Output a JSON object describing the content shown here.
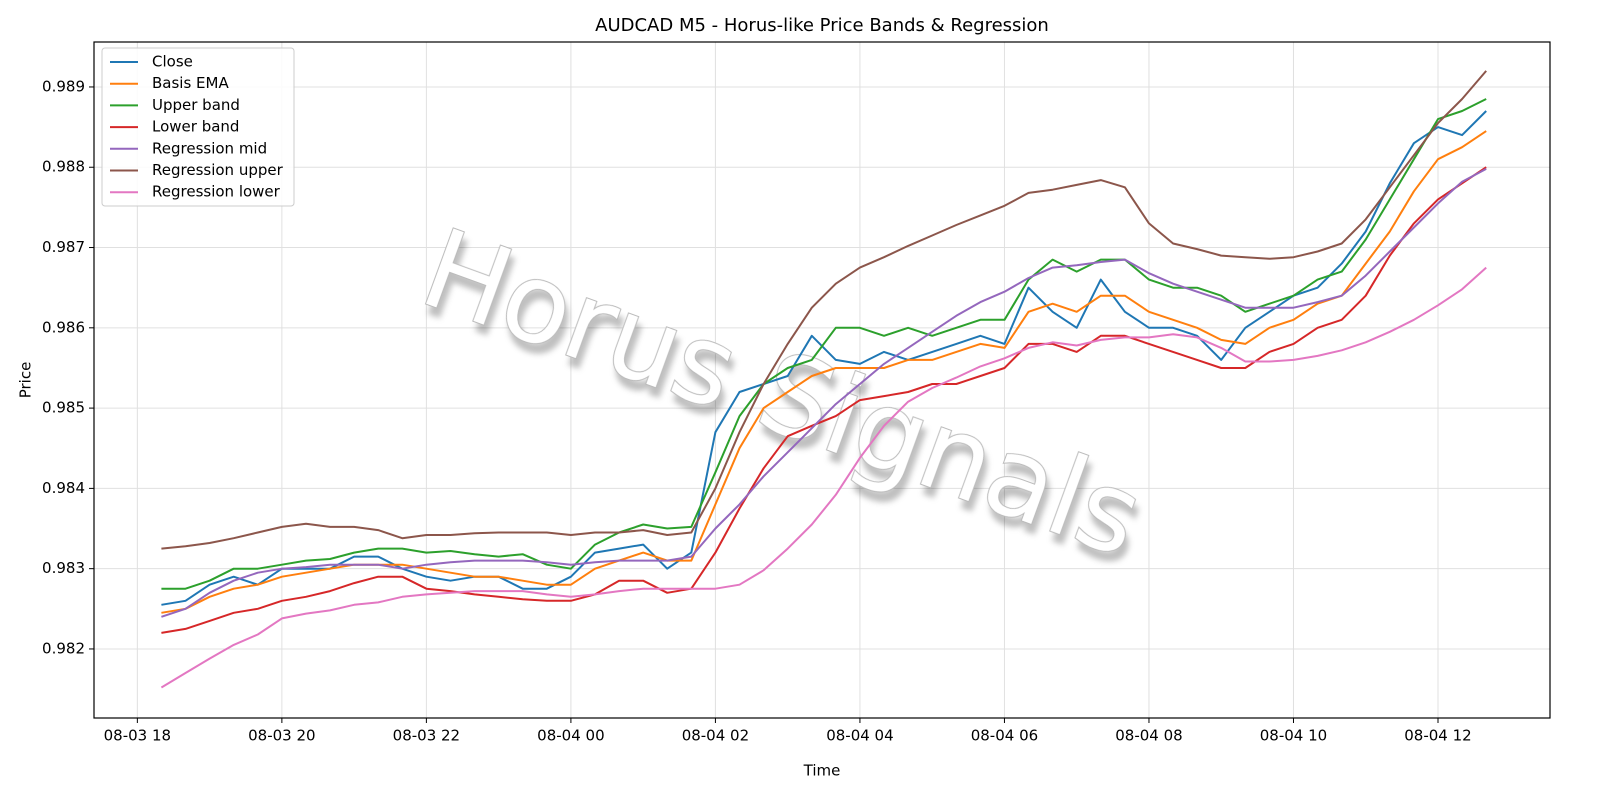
{
  "chart_data": {
    "type": "line",
    "title": "AUDCAD M5 - Horus-like Price Bands & Regression",
    "xlabel": "Time",
    "ylabel": "Price",
    "watermark": "Horus Signals",
    "legend": "upper left",
    "grid": true,
    "x": [
      "08-03 18:20",
      "08-03 18:40",
      "08-03 19:00",
      "08-03 19:20",
      "08-03 19:40",
      "08-03 20:00",
      "08-03 20:20",
      "08-03 20:40",
      "08-03 21:00",
      "08-03 21:20",
      "08-03 21:40",
      "08-03 22:00",
      "08-03 22:20",
      "08-03 22:40",
      "08-03 23:00",
      "08-03 23:20",
      "08-03 23:40",
      "08-04 00:00",
      "08-04 00:20",
      "08-04 00:40",
      "08-04 01:00",
      "08-04 01:20",
      "08-04 01:40",
      "08-04 02:00",
      "08-04 02:20",
      "08-04 02:40",
      "08-04 03:00",
      "08-04 03:20",
      "08-04 03:40",
      "08-04 04:00",
      "08-04 04:20",
      "08-04 04:40",
      "08-04 05:00",
      "08-04 05:20",
      "08-04 05:40",
      "08-04 06:00",
      "08-04 06:20",
      "08-04 06:40",
      "08-04 07:00",
      "08-04 07:20",
      "08-04 07:40",
      "08-04 08:00",
      "08-04 08:20",
      "08-04 08:40",
      "08-04 09:00",
      "08-04 09:20",
      "08-04 09:40",
      "08-04 10:00",
      "08-04 10:20",
      "08-04 10:40",
      "08-04 11:00",
      "08-04 11:20",
      "08-04 11:40",
      "08-04 12:00",
      "08-04 12:20",
      "08-04 12:40"
    ],
    "xlim": [
      "08-03 17:24",
      "08-04 13:33"
    ],
    "xticks": [
      {
        "value": "08-03 18:00",
        "label": "08-03 18"
      },
      {
        "value": "08-03 20:00",
        "label": "08-03 20"
      },
      {
        "value": "08-03 22:00",
        "label": "08-03 22"
      },
      {
        "value": "08-04 00:00",
        "label": "08-04 00"
      },
      {
        "value": "08-04 02:00",
        "label": "08-04 02"
      },
      {
        "value": "08-04 04:00",
        "label": "08-04 04"
      },
      {
        "value": "08-04 06:00",
        "label": "08-04 06"
      },
      {
        "value": "08-04 08:00",
        "label": "08-04 08"
      },
      {
        "value": "08-04 10:00",
        "label": "08-04 10"
      },
      {
        "value": "08-04 12:00",
        "label": "08-04 12"
      }
    ],
    "ylim": [
      0.98114,
      0.98956
    ],
    "yticks": [
      0.982,
      0.983,
      0.984,
      0.985,
      0.986,
      0.987,
      0.988,
      0.989
    ],
    "series": [
      {
        "name": "Close",
        "color": "#1f77b4",
        "values": [
          0.98255,
          0.9826,
          0.9828,
          0.9829,
          0.9828,
          0.983,
          0.983,
          0.983,
          0.98315,
          0.98315,
          0.983,
          0.9829,
          0.98285,
          0.9829,
          0.9829,
          0.98275,
          0.98275,
          0.9829,
          0.9832,
          0.98325,
          0.9833,
          0.983,
          0.9832,
          0.9847,
          0.9852,
          0.9853,
          0.9854,
          0.9859,
          0.9856,
          0.98555,
          0.9857,
          0.9856,
          0.9857,
          0.9858,
          0.9859,
          0.9858,
          0.9865,
          0.9862,
          0.986,
          0.9866,
          0.9862,
          0.986,
          0.986,
          0.9859,
          0.9856,
          0.986,
          0.9862,
          0.9864,
          0.9865,
          0.9868,
          0.9872,
          0.9878,
          0.9883,
          0.9885,
          0.9884,
          0.9887
        ]
      },
      {
        "name": "Basis EMA",
        "color": "#ff7f0e",
        "values": [
          0.98245,
          0.9825,
          0.98265,
          0.98275,
          0.9828,
          0.9829,
          0.98295,
          0.983,
          0.98305,
          0.98305,
          0.98305,
          0.983,
          0.98295,
          0.9829,
          0.9829,
          0.98285,
          0.9828,
          0.9828,
          0.983,
          0.9831,
          0.9832,
          0.9831,
          0.9831,
          0.9838,
          0.9845,
          0.985,
          0.9852,
          0.9854,
          0.9855,
          0.9855,
          0.9855,
          0.9856,
          0.9856,
          0.9857,
          0.9858,
          0.98575,
          0.9862,
          0.9863,
          0.9862,
          0.9864,
          0.9864,
          0.9862,
          0.9861,
          0.986,
          0.98585,
          0.9858,
          0.986,
          0.9861,
          0.9863,
          0.9864,
          0.9868,
          0.9872,
          0.9877,
          0.9881,
          0.98825,
          0.98845
        ]
      },
      {
        "name": "Upper band",
        "color": "#2ca02c",
        "values": [
          0.98275,
          0.98275,
          0.98285,
          0.983,
          0.983,
          0.98305,
          0.9831,
          0.98312,
          0.9832,
          0.98325,
          0.98325,
          0.9832,
          0.98322,
          0.98318,
          0.98315,
          0.98318,
          0.98305,
          0.983,
          0.9833,
          0.98345,
          0.98355,
          0.9835,
          0.98352,
          0.9842,
          0.9849,
          0.9853,
          0.9855,
          0.9856,
          0.986,
          0.986,
          0.9859,
          0.986,
          0.9859,
          0.986,
          0.9861,
          0.9861,
          0.9866,
          0.98685,
          0.9867,
          0.98685,
          0.98685,
          0.9866,
          0.9865,
          0.9865,
          0.9864,
          0.9862,
          0.9863,
          0.9864,
          0.9866,
          0.9867,
          0.9871,
          0.9876,
          0.9881,
          0.9886,
          0.9887,
          0.98885
        ]
      },
      {
        "name": "Lower band",
        "color": "#d62728",
        "values": [
          0.9822,
          0.98225,
          0.98235,
          0.98245,
          0.9825,
          0.9826,
          0.98265,
          0.98272,
          0.98282,
          0.9829,
          0.9829,
          0.98275,
          0.98272,
          0.98268,
          0.98265,
          0.98262,
          0.9826,
          0.9826,
          0.98268,
          0.98285,
          0.98285,
          0.9827,
          0.98275,
          0.9832,
          0.98375,
          0.98425,
          0.98465,
          0.98478,
          0.9849,
          0.9851,
          0.98515,
          0.9852,
          0.9853,
          0.9853,
          0.9854,
          0.9855,
          0.9858,
          0.9858,
          0.9857,
          0.9859,
          0.9859,
          0.9858,
          0.9857,
          0.9856,
          0.9855,
          0.9855,
          0.9857,
          0.9858,
          0.986,
          0.9861,
          0.9864,
          0.9869,
          0.9873,
          0.9876,
          0.9878,
          0.988
        ]
      },
      {
        "name": "Regression mid",
        "color": "#9467bd",
        "values": [
          0.9824,
          0.9825,
          0.9827,
          0.98285,
          0.98295,
          0.983,
          0.98302,
          0.98305,
          0.98305,
          0.98305,
          0.983,
          0.98305,
          0.98308,
          0.9831,
          0.9831,
          0.9831,
          0.98308,
          0.98305,
          0.98308,
          0.9831,
          0.9831,
          0.9831,
          0.98315,
          0.9835,
          0.9838,
          0.98415,
          0.98445,
          0.98475,
          0.98505,
          0.9853,
          0.98555,
          0.98575,
          0.98595,
          0.98615,
          0.98632,
          0.98645,
          0.98662,
          0.98675,
          0.98678,
          0.98682,
          0.98685,
          0.98668,
          0.98655,
          0.98645,
          0.98635,
          0.98625,
          0.98625,
          0.98625,
          0.98632,
          0.9864,
          0.98665,
          0.98695,
          0.98725,
          0.98755,
          0.98782,
          0.98798
        ]
      },
      {
        "name": "Regression upper",
        "color": "#8c564b",
        "values": [
          0.98325,
          0.98328,
          0.98332,
          0.98338,
          0.98345,
          0.98352,
          0.98356,
          0.98352,
          0.98352,
          0.98348,
          0.98338,
          0.98342,
          0.98342,
          0.98344,
          0.98345,
          0.98345,
          0.98345,
          0.98342,
          0.98345,
          0.98345,
          0.98348,
          0.98342,
          0.98345,
          0.984,
          0.9847,
          0.9853,
          0.9858,
          0.98625,
          0.98655,
          0.98675,
          0.98688,
          0.98702,
          0.98715,
          0.98728,
          0.9874,
          0.98752,
          0.98768,
          0.98772,
          0.98778,
          0.98784,
          0.98775,
          0.9873,
          0.98705,
          0.98698,
          0.9869,
          0.98688,
          0.98686,
          0.98688,
          0.98695,
          0.98705,
          0.98735,
          0.98775,
          0.98815,
          0.98855,
          0.98885,
          0.9892
        ]
      },
      {
        "name": "Regression lower",
        "color": "#e377c2",
        "values": [
          0.98152,
          0.9817,
          0.98188,
          0.98205,
          0.98218,
          0.98238,
          0.98244,
          0.98248,
          0.98255,
          0.98258,
          0.98265,
          0.98268,
          0.9827,
          0.98272,
          0.98272,
          0.98272,
          0.98268,
          0.98265,
          0.98268,
          0.98272,
          0.98275,
          0.98275,
          0.98275,
          0.98275,
          0.9828,
          0.98298,
          0.98325,
          0.98355,
          0.98392,
          0.98438,
          0.98478,
          0.98508,
          0.98525,
          0.98538,
          0.98552,
          0.98562,
          0.98575,
          0.98582,
          0.98578,
          0.98585,
          0.98588,
          0.98588,
          0.98592,
          0.98588,
          0.98575,
          0.98558,
          0.98558,
          0.9856,
          0.98565,
          0.98572,
          0.98582,
          0.98595,
          0.9861,
          0.98628,
          0.98648,
          0.98675
        ]
      }
    ]
  }
}
